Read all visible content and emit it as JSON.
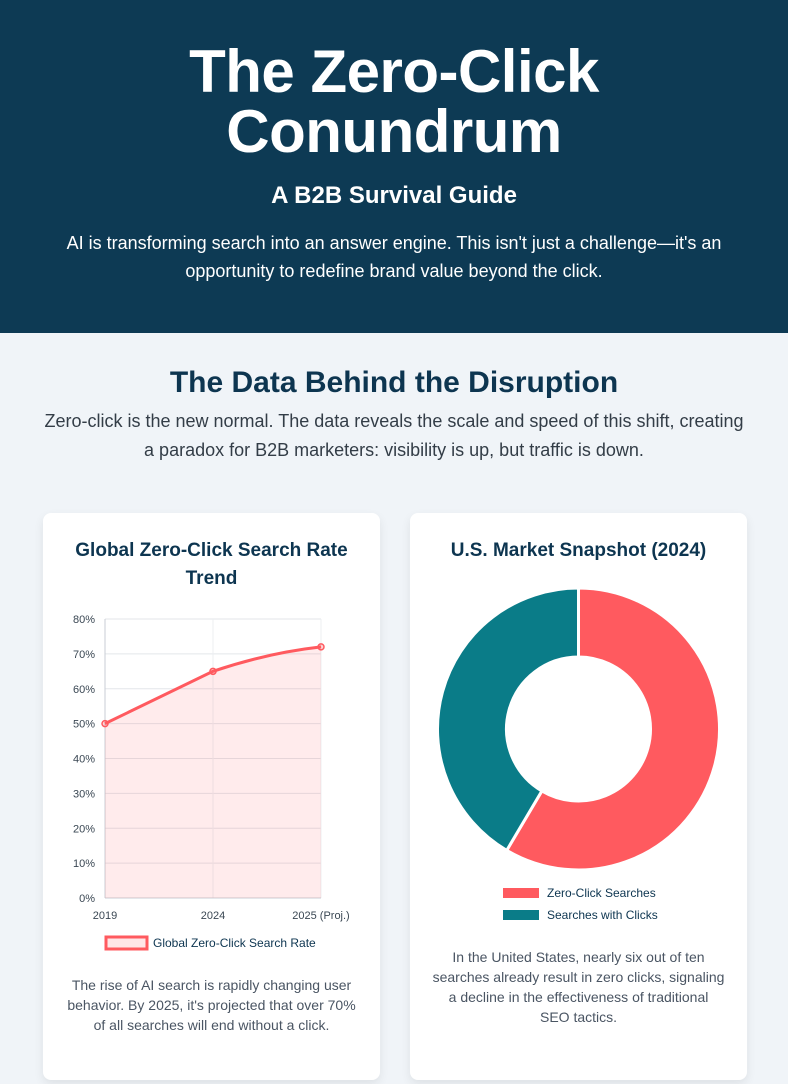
{
  "hero": {
    "title": "The Zero-Click Conundrum",
    "subtitle": "A B2B Survival Guide",
    "intro": "AI is transforming search into an answer engine. This isn't just a challenge—it's an opportunity to redefine brand value beyond the click."
  },
  "section": {
    "title": "The Data Behind the Disruption",
    "subtitle": "Zero-click is the new normal. The data reveals the scale and speed of this shift, creating a paradox for B2B marketers: visibility is up, but traffic is down."
  },
  "colors": {
    "navy": "#0d3a54",
    "coral": "#ff5a5f",
    "teal": "#0a7c88"
  },
  "cards": {
    "trend": {
      "title": "Global Zero-Click Search Rate Trend",
      "description": "The rise of AI search is rapidly changing user behavior. By 2025, it's projected that over 70% of all searches will end without a click."
    },
    "snapshot": {
      "title": "U.S. Market Snapshot (2024)",
      "description": "In the United States, nearly six out of ten searches already result in zero clicks, signaling a decline in the effectiveness of traditional SEO tactics."
    }
  },
  "chart_data": [
    {
      "type": "line",
      "title": "Global Zero-Click Search Rate Trend",
      "categories": [
        "2019",
        "2024",
        "2025 (Proj.)"
      ],
      "series": [
        {
          "name": "Global Zero-Click Search Rate",
          "values": [
            50,
            65,
            72
          ],
          "color": "#ff5a5f",
          "fill": "area"
        }
      ],
      "y_ticks": [
        "0%",
        "10%",
        "20%",
        "30%",
        "40%",
        "50%",
        "60%",
        "70%",
        "80%"
      ],
      "ylim": [
        0,
        80
      ],
      "grid": true,
      "legend": "bottom"
    },
    {
      "type": "pie",
      "variant": "doughnut",
      "title": "U.S. Market Snapshot (2024)",
      "labels": [
        "Zero-Click Searches",
        "Searches with Clicks"
      ],
      "values": [
        58.5,
        41.5
      ],
      "colors": [
        "#ff5a5f",
        "#0a7c88"
      ],
      "legend": "bottom"
    }
  ]
}
